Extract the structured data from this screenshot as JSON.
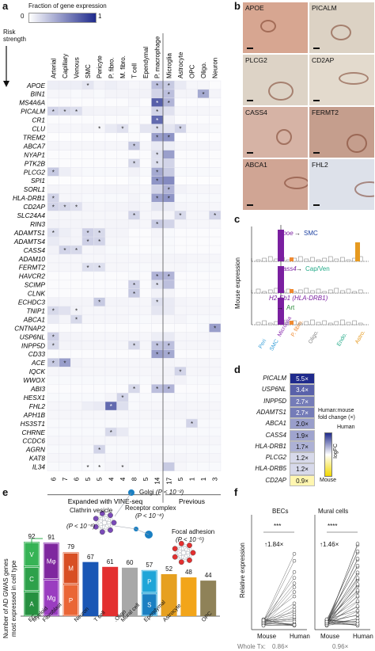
{
  "panel_labels": {
    "a": "a",
    "b": "b",
    "c": "c",
    "d": "d",
    "e": "e",
    "f": "f"
  },
  "panel_a": {
    "legend_title": "Fraction of gene expression",
    "legend_min": "0",
    "legend_max": "1",
    "risk_label_1": "Risk",
    "risk_label_2": "strength",
    "cell_types": [
      "Arterial",
      "Capillary",
      "Venous",
      "SMC",
      "Pericyte",
      "P. fibro.",
      "M. fibro.",
      "T cell",
      "Ependymal",
      "P. macrophage",
      "Microglia",
      "Astrocyte",
      "OPC",
      "Oligo.",
      "Neuron"
    ],
    "counts": [
      "6",
      "7",
      "6",
      "5",
      "5",
      "4",
      "4",
      "8",
      "5",
      "14",
      "17",
      "5",
      "1",
      "1",
      "3"
    ],
    "group_left": "Expanded with VINE-seq",
    "group_right": "Previous",
    "colors": {
      "low": "#ffffff",
      "high": "#1f2a8c",
      "star": "#222222"
    },
    "genes": [
      "APOE",
      "BIN1",
      "MS4A6A",
      "PICALM",
      "CR1",
      "CLU",
      "TREM2",
      "ABCA7",
      "NYAP1",
      "PTK2B",
      "PLCG2",
      "SPI1",
      "SORL1",
      "HLA-DRB1",
      "CD2AP",
      "SLC24A4",
      "RIN3",
      "ADAMTS1",
      "ADAMTS4",
      "CASS4",
      "ADAM10",
      "FERMT2",
      "HAVCR2",
      "SCIMP",
      "CLNK",
      "ECHDC3",
      "TNIP1",
      "ABCA1",
      "CNTNAP2",
      "USP6NL",
      "INPP5D",
      "CD33",
      "ACE",
      "IQCK",
      "WWOX",
      "ABI3",
      "HESX1",
      "FHL2",
      "APH1B",
      "HS3ST1",
      "CHRNE",
      "CCDC6",
      "AGRN",
      "KAT8",
      "IL34"
    ],
    "heatmap": [
      [
        0.08,
        0.08,
        0.08,
        0.12,
        0.06,
        0.08,
        0.06,
        0.04,
        0.05,
        0.3,
        0.25,
        0.1,
        0.04,
        0.04,
        0.02
      ],
      [
        0.04,
        0.04,
        0.03,
        0.04,
        0.03,
        0.05,
        0.05,
        0.05,
        0.06,
        0.2,
        0.3,
        0.05,
        0.05,
        0.4,
        0.05
      ],
      [
        0.02,
        0.02,
        0.02,
        0.02,
        0.02,
        0.02,
        0.02,
        0.04,
        0.02,
        0.75,
        0.35,
        0.02,
        0.02,
        0.02,
        0.02
      ],
      [
        0.2,
        0.18,
        0.15,
        0.06,
        0.05,
        0.05,
        0.05,
        0.03,
        0.04,
        0.2,
        0.14,
        0.04,
        0.04,
        0.04,
        0.04
      ],
      [
        0.02,
        0.02,
        0.02,
        0.02,
        0.02,
        0.02,
        0.02,
        0.02,
        0.02,
        0.7,
        0.06,
        0.02,
        0.02,
        0.02,
        0.02
      ],
      [
        0.04,
        0.04,
        0.04,
        0.05,
        0.04,
        0.1,
        0.14,
        0.03,
        0.12,
        0.15,
        0.12,
        0.2,
        0.04,
        0.04,
        0.03
      ],
      [
        0.01,
        0.01,
        0.01,
        0.01,
        0.01,
        0.01,
        0.01,
        0.02,
        0.01,
        0.45,
        0.5,
        0.01,
        0.01,
        0.01,
        0.01
      ],
      [
        0.04,
        0.04,
        0.04,
        0.04,
        0.04,
        0.04,
        0.04,
        0.25,
        0.04,
        0.1,
        0.08,
        0.04,
        0.04,
        0.04,
        0.04
      ],
      [
        0.02,
        0.02,
        0.02,
        0.02,
        0.02,
        0.02,
        0.02,
        0.02,
        0.02,
        0.15,
        0.45,
        0.02,
        0.02,
        0.02,
        0.02
      ],
      [
        0.02,
        0.02,
        0.02,
        0.02,
        0.02,
        0.02,
        0.02,
        0.18,
        0.02,
        0.15,
        0.2,
        0.02,
        0.02,
        0.02,
        0.02
      ],
      [
        0.25,
        0.08,
        0.04,
        0.03,
        0.03,
        0.03,
        0.03,
        0.06,
        0.03,
        0.4,
        0.25,
        0.03,
        0.03,
        0.03,
        0.03
      ],
      [
        0.01,
        0.01,
        0.01,
        0.01,
        0.01,
        0.01,
        0.01,
        0.03,
        0.01,
        0.5,
        0.55,
        0.01,
        0.01,
        0.01,
        0.01
      ],
      [
        0.05,
        0.04,
        0.04,
        0.04,
        0.04,
        0.05,
        0.05,
        0.04,
        0.04,
        0.2,
        0.35,
        0.06,
        0.04,
        0.04,
        0.04
      ],
      [
        0.2,
        0.04,
        0.04,
        0.03,
        0.03,
        0.03,
        0.03,
        0.05,
        0.03,
        0.45,
        0.5,
        0.03,
        0.03,
        0.03,
        0.03
      ],
      [
        0.2,
        0.18,
        0.14,
        0.05,
        0.04,
        0.05,
        0.05,
        0.06,
        0.04,
        0.12,
        0.1,
        0.05,
        0.04,
        0.04,
        0.04
      ],
      [
        0.04,
        0.04,
        0.04,
        0.04,
        0.04,
        0.04,
        0.04,
        0.2,
        0.04,
        0.05,
        0.05,
        0.18,
        0.04,
        0.04,
        0.2
      ],
      [
        0.06,
        0.05,
        0.05,
        0.05,
        0.04,
        0.05,
        0.05,
        0.05,
        0.04,
        0.25,
        0.2,
        0.05,
        0.04,
        0.04,
        0.04
      ],
      [
        0.15,
        0.08,
        0.05,
        0.22,
        0.18,
        0.05,
        0.05,
        0.02,
        0.02,
        0.05,
        0.03,
        0.02,
        0.02,
        0.02,
        0.02
      ],
      [
        0.1,
        0.06,
        0.05,
        0.22,
        0.2,
        0.04,
        0.04,
        0.02,
        0.02,
        0.04,
        0.03,
        0.02,
        0.02,
        0.02,
        0.02
      ],
      [
        0.06,
        0.2,
        0.18,
        0.04,
        0.05,
        0.03,
        0.03,
        0.02,
        0.02,
        0.03,
        0.03,
        0.02,
        0.02,
        0.02,
        0.02
      ],
      [
        0.04,
        0.04,
        0.04,
        0.04,
        0.04,
        0.04,
        0.04,
        0.04,
        0.04,
        0.05,
        0.05,
        0.05,
        0.04,
        0.04,
        0.04
      ],
      [
        0.04,
        0.04,
        0.04,
        0.15,
        0.15,
        0.04,
        0.04,
        0.03,
        0.03,
        0.04,
        0.04,
        0.04,
        0.03,
        0.03,
        0.03
      ],
      [
        0.02,
        0.02,
        0.02,
        0.02,
        0.02,
        0.02,
        0.02,
        0.03,
        0.02,
        0.35,
        0.35,
        0.02,
        0.02,
        0.02,
        0.02
      ],
      [
        0.02,
        0.02,
        0.02,
        0.02,
        0.02,
        0.02,
        0.02,
        0.22,
        0.02,
        0.15,
        0.3,
        0.02,
        0.02,
        0.02,
        0.02
      ],
      [
        0.02,
        0.02,
        0.02,
        0.02,
        0.02,
        0.02,
        0.02,
        0.25,
        0.02,
        0.06,
        0.05,
        0.02,
        0.02,
        0.02,
        0.02
      ],
      [
        0.06,
        0.05,
        0.05,
        0.05,
        0.25,
        0.05,
        0.05,
        0.04,
        0.04,
        0.15,
        0.1,
        0.05,
        0.04,
        0.04,
        0.04
      ],
      [
        0.18,
        0.14,
        0.06,
        0.04,
        0.04,
        0.04,
        0.04,
        0.04,
        0.04,
        0.12,
        0.1,
        0.04,
        0.04,
        0.04,
        0.04
      ],
      [
        0.1,
        0.05,
        0.18,
        0.04,
        0.04,
        0.04,
        0.04,
        0.03,
        0.03,
        0.04,
        0.04,
        0.05,
        0.03,
        0.03,
        0.03
      ],
      [
        0.02,
        0.02,
        0.02,
        0.02,
        0.02,
        0.02,
        0.02,
        0.02,
        0.02,
        0.02,
        0.02,
        0.02,
        0.02,
        0.03,
        0.45
      ],
      [
        0.22,
        0.06,
        0.05,
        0.04,
        0.04,
        0.04,
        0.04,
        0.04,
        0.04,
        0.08,
        0.1,
        0.04,
        0.04,
        0.04,
        0.04
      ],
      [
        0.18,
        0.05,
        0.05,
        0.04,
        0.04,
        0.04,
        0.04,
        0.18,
        0.04,
        0.28,
        0.3,
        0.04,
        0.04,
        0.04,
        0.04
      ],
      [
        0.02,
        0.02,
        0.02,
        0.02,
        0.02,
        0.02,
        0.02,
        0.02,
        0.02,
        0.45,
        0.4,
        0.02,
        0.02,
        0.02,
        0.02
      ],
      [
        0.25,
        0.45,
        0.06,
        0.04,
        0.04,
        0.04,
        0.04,
        0.04,
        0.04,
        0.05,
        0.05,
        0.04,
        0.04,
        0.04,
        0.04
      ],
      [
        0.04,
        0.04,
        0.04,
        0.04,
        0.04,
        0.04,
        0.04,
        0.04,
        0.04,
        0.05,
        0.06,
        0.2,
        0.04,
        0.04,
        0.04
      ],
      [
        0.03,
        0.03,
        0.03,
        0.03,
        0.03,
        0.03,
        0.03,
        0.03,
        0.03,
        0.05,
        0.05,
        0.06,
        0.03,
        0.03,
        0.03
      ],
      [
        0.02,
        0.02,
        0.02,
        0.02,
        0.02,
        0.02,
        0.02,
        0.18,
        0.02,
        0.3,
        0.35,
        0.02,
        0.02,
        0.02,
        0.02
      ],
      [
        0.03,
        0.03,
        0.03,
        0.03,
        0.03,
        0.05,
        0.2,
        0.03,
        0.03,
        0.03,
        0.03,
        0.03,
        0.03,
        0.03,
        0.03
      ],
      [
        0.04,
        0.04,
        0.04,
        0.08,
        0.1,
        0.7,
        0.15,
        0.03,
        0.04,
        0.04,
        0.04,
        0.05,
        0.04,
        0.04,
        0.04
      ],
      [
        0.04,
        0.04,
        0.04,
        0.04,
        0.04,
        0.04,
        0.04,
        0.04,
        0.04,
        0.05,
        0.05,
        0.05,
        0.04,
        0.04,
        0.04
      ],
      [
        0.03,
        0.03,
        0.03,
        0.03,
        0.03,
        0.03,
        0.03,
        0.03,
        0.03,
        0.03,
        0.03,
        0.03,
        0.2,
        0.03,
        0.03
      ],
      [
        0.03,
        0.03,
        0.03,
        0.03,
        0.03,
        0.18,
        0.1,
        0.03,
        0.03,
        0.03,
        0.03,
        0.03,
        0.03,
        0.03,
        0.03
      ],
      [
        0.04,
        0.04,
        0.04,
        0.04,
        0.04,
        0.04,
        0.04,
        0.04,
        0.04,
        0.05,
        0.05,
        0.05,
        0.04,
        0.04,
        0.04
      ],
      [
        0.03,
        0.03,
        0.03,
        0.03,
        0.2,
        0.03,
        0.03,
        0.03,
        0.03,
        0.03,
        0.03,
        0.03,
        0.03,
        0.03,
        0.03
      ],
      [
        0.04,
        0.04,
        0.04,
        0.04,
        0.04,
        0.04,
        0.04,
        0.04,
        0.04,
        0.05,
        0.05,
        0.05,
        0.04,
        0.04,
        0.04
      ],
      [
        0.03,
        0.03,
        0.03,
        0.03,
        0.03,
        0.05,
        0.05,
        0.03,
        0.03,
        0.05,
        0.25,
        0.04,
        0.03,
        0.03,
        0.03
      ]
    ],
    "stars": [
      [
        3,
        9,
        10
      ],
      [
        10,
        13
      ],
      [
        9,
        10
      ],
      [
        0,
        1,
        2,
        9
      ],
      [
        9
      ],
      [
        4,
        6,
        9,
        11
      ],
      [
        9,
        10
      ],
      [
        7
      ],
      [
        9
      ],
      [
        7,
        9
      ],
      [
        0,
        9
      ],
      [
        9
      ],
      [
        10
      ],
      [
        0,
        9,
        10
      ],
      [
        0,
        1,
        2
      ],
      [
        7,
        11,
        14
      ],
      [
        9
      ],
      [
        0,
        3,
        4
      ],
      [
        3,
        4
      ],
      [
        1,
        2
      ],
      [],
      [
        3,
        4
      ],
      [
        9,
        10
      ],
      [
        7,
        9
      ],
      [
        7
      ],
      [
        4,
        9
      ],
      [
        0,
        2
      ],
      [
        2
      ],
      [
        14
      ],
      [
        0
      ],
      [
        0,
        7,
        9,
        10
      ],
      [
        9,
        10
      ],
      [
        0,
        1
      ],
      [
        11
      ],
      [],
      [
        7,
        9,
        10
      ],
      [
        6
      ],
      [
        5
      ],
      [],
      [
        12
      ],
      [
        5
      ],
      [],
      [
        4
      ],
      [],
      [
        3,
        4,
        6
      ]
    ]
  },
  "panel_b": {
    "tiles": [
      {
        "label": "APOE",
        "bg": "#d7a691"
      },
      {
        "label": "PICALM",
        "bg": "#dcd2c4"
      },
      {
        "label": "PLCG2",
        "bg": "#ddd3c6"
      },
      {
        "label": "CD2AP",
        "bg": "#e3dacd"
      },
      {
        "label": "CASS4",
        "bg": "#d6b3a5"
      },
      {
        "label": "FERMT2",
        "bg": "#c59e8d"
      },
      {
        "label": "ABCA1",
        "bg": "#d0a594"
      },
      {
        "label": "FHL2",
        "bg": "#dde1ea"
      }
    ]
  },
  "panel_c": {
    "ylabel": "Mouse expression",
    "annotations": [
      {
        "gene": "Apoe",
        "target": "SMC"
      },
      {
        "gene": "Cass4",
        "target": "Cap/Ven"
      },
      {
        "gene": "H2-Eb1 (HLA-DRB1)",
        "target": "Art"
      }
    ],
    "xlabels": [
      "Peri",
      "SMC",
      "Microglia",
      "P. fibro.",
      "Oligo.",
      "Endo.",
      "Astro."
    ],
    "xlabel_colors": [
      "#3aa0d8",
      "#3aa0d8",
      "#8b2fb0",
      "#f08a30",
      "#888888",
      "#22aa88",
      "#e69a20"
    ],
    "colors": {
      "gene": "#7a1fa0",
      "arrow_text_1": "#1b3fa0",
      "arrow_text_2": "#22aa88",
      "arrow_text_3": "#2a8a3a"
    }
  },
  "panel_d": {
    "genes": [
      "PICALM",
      "USP6NL",
      "INPP5D",
      "ADAMTS1",
      "ABCA1",
      "CASS4",
      "HLA-DRB1",
      "PLCG2",
      "HLA-DRB5",
      "CD2AP"
    ],
    "values": [
      "5.5×",
      "3.4×",
      "2.7×",
      "2.7×",
      "2.0×",
      "1.9×",
      "1.7×",
      "1.2×",
      "1.2×",
      "0.9×"
    ],
    "fold": [
      5.5,
      3.4,
      2.7,
      2.7,
      2.0,
      1.9,
      1.7,
      1.2,
      1.2,
      0.9
    ],
    "legend_title_1": "Human:mouse",
    "legend_title_2": "fold change (×)",
    "legend_top": "Human",
    "legend_bottom": "Mouse",
    "legend_axis": "logFC"
  },
  "panel_e": {
    "ylabel_1": "Number of AD GWAS genes",
    "ylabel_2": "most expressed in cell type",
    "categories": [
      "EC",
      "Myeloid",
      "Fibroblast",
      "Neuron",
      "T cell",
      "Oligo.",
      "Mural cell",
      "Ependymal",
      "Astrocyte",
      "OPC"
    ],
    "chart_data": {
      "type": "bar",
      "categories": [
        "EC",
        "Myeloid",
        "Fibroblast",
        "Neuron",
        "T cell",
        "Oligo.",
        "Mural cell",
        "Ependymal",
        "Astrocyte",
        "OPC"
      ],
      "values": [
        92,
        91,
        79,
        67,
        61,
        60,
        57,
        52,
        48,
        44
      ],
      "ylabel": "Number of AD GWAS genes most expressed in cell type",
      "colors": [
        "#2fb14f",
        "#8b2fb0",
        "#e0572a",
        "#1a57b5",
        "#e33030",
        "#a8a8a8",
        "#1fa5d8",
        "#e6a020",
        "#f2a51a",
        "#8f8258"
      ]
    },
    "ec_segments": [
      "V",
      "C",
      "A"
    ],
    "myeloid_segments": [
      "Mφ",
      "Mg"
    ],
    "fibro_segments": [
      "M",
      "P"
    ],
    "mural_segments": [
      "P",
      "S"
    ],
    "network_labels": [
      {
        "name": "Golgi",
        "p": "(P < 10⁻²)"
      },
      {
        "name": "Receptor complex",
        "p": "(P < 10⁻⁴)"
      },
      {
        "name": "Focal adhesion",
        "p": "(P < 10⁻⁵)"
      },
      {
        "name": "Clathrin vesicle",
        "p": "(P < 10⁻⁴)"
      }
    ]
  },
  "panel_f": {
    "ylabel": "Relative expression",
    "plots": [
      {
        "title": "BECs",
        "sig": "***",
        "fold": "↑1.84×",
        "xlabels": [
          "Mouse",
          "Human"
        ],
        "whole": "0.86×"
      },
      {
        "title": "Mural cells",
        "sig": "****",
        "fold": "↑1.46×",
        "xlabels": [
          "Mouse",
          "Human"
        ],
        "whole": "0.96×"
      }
    ],
    "whole_label": "Whole Tx:"
  }
}
